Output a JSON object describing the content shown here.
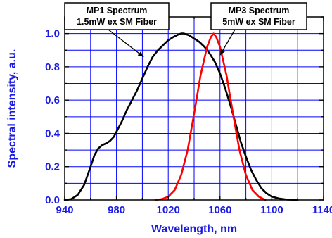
{
  "chart_data": {
    "type": "line",
    "xlabel": "Wavelength, nm",
    "ylabel": "Spectral intensity, a.u.",
    "xlim": [
      940,
      1140
    ],
    "ylim": [
      0,
      1.1
    ],
    "x_ticks": [
      940,
      980,
      1020,
      1060,
      1100,
      1140
    ],
    "x_tick_labels": [
      "940",
      "980",
      "1020",
      "1060",
      "1100",
      "1140"
    ],
    "y_ticks": [
      0,
      0.2,
      0.4,
      0.6,
      0.8,
      1.0
    ],
    "y_tick_labels": [
      "0.0",
      "0.2",
      "0.4",
      "0.6",
      "0.8",
      "1.0"
    ],
    "grid": true,
    "grid_color": "#0000ff",
    "axis_label_color": "#1a1ae6",
    "series": [
      {
        "color": "#000000",
        "x": [
          940,
          945,
          950,
          955,
          960,
          963,
          966,
          969,
          972,
          975,
          978,
          980,
          984,
          988,
          992,
          996,
          1000,
          1004,
          1008,
          1012,
          1016,
          1020,
          1024,
          1028,
          1030,
          1032,
          1036,
          1040,
          1044,
          1048,
          1052,
          1056,
          1060,
          1064,
          1068,
          1072,
          1076,
          1080,
          1084,
          1088,
          1092,
          1096,
          1100,
          1106,
          1112,
          1120
        ],
        "values": [
          0.0,
          0.005,
          0.03,
          0.09,
          0.2,
          0.27,
          0.31,
          0.33,
          0.34,
          0.355,
          0.38,
          0.41,
          0.47,
          0.54,
          0.6,
          0.66,
          0.73,
          0.8,
          0.86,
          0.9,
          0.93,
          0.96,
          0.98,
          0.995,
          1.0,
          1.0,
          0.99,
          0.97,
          0.95,
          0.92,
          0.88,
          0.83,
          0.76,
          0.67,
          0.57,
          0.46,
          0.35,
          0.26,
          0.18,
          0.12,
          0.07,
          0.04,
          0.02,
          0.008,
          0.002,
          0.0
        ]
      },
      {
        "color": "#ff0000",
        "x": [
          1010,
          1015,
          1020,
          1025,
          1030,
          1035,
          1040,
          1045,
          1050,
          1053,
          1055,
          1057,
          1060,
          1065,
          1070,
          1075,
          1080,
          1085,
          1090,
          1095
        ],
        "values": [
          0.0,
          0.005,
          0.02,
          0.06,
          0.15,
          0.3,
          0.52,
          0.75,
          0.92,
          0.98,
          1.0,
          0.98,
          0.92,
          0.75,
          0.52,
          0.3,
          0.15,
          0.06,
          0.02,
          0.0
        ]
      }
    ],
    "annotations": [
      {
        "lines": [
          "MP1 Spectrum",
          "1.5mW ex SM Fiber"
        ],
        "arrow_to": [
          1001,
          0.86
        ]
      },
      {
        "lines": [
          "MP3 Spectrum",
          "5mW ex SM Fiber"
        ],
        "arrow_to": [
          1060,
          0.87
        ]
      }
    ]
  }
}
